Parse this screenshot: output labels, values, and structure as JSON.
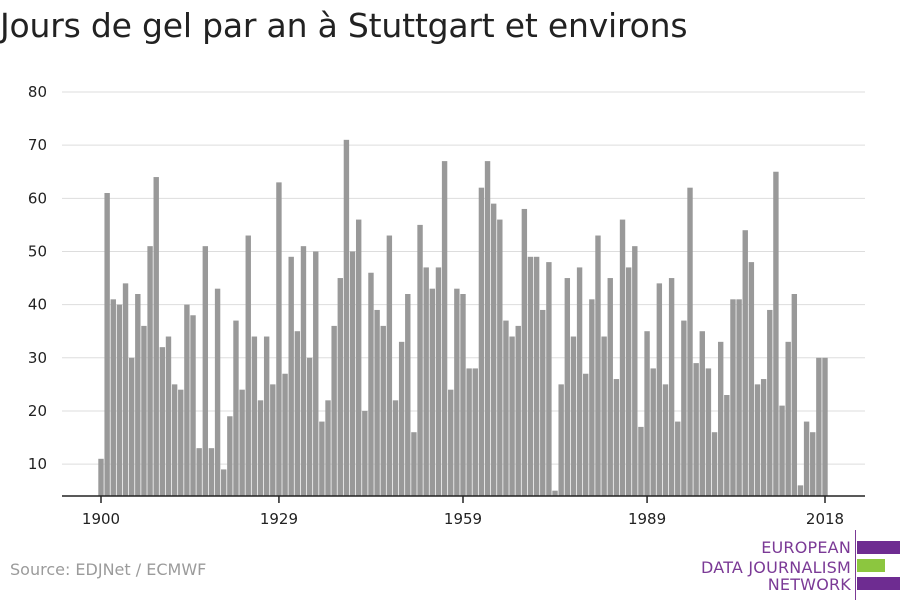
{
  "title": "Jours de gel par an à Stuttgart et environs",
  "source": "Source: EDJNet / ECMWF",
  "logo": {
    "lines": [
      "EUROPEAN",
      "DATA JOURNALISM",
      "NETWORK"
    ],
    "colors": {
      "purple": "#6e2c91",
      "green": "#8cc63f"
    }
  },
  "colors": {
    "bar": "#999999",
    "grid": "#dddddd",
    "axis": "#222222"
  },
  "chart_data": {
    "type": "bar",
    "title": "Jours de gel par an à Stuttgart et environs",
    "x_start": 1900,
    "x_end": 2018,
    "xticks": [
      1900,
      1929,
      1959,
      1989,
      2018
    ],
    "yticks": [
      10,
      20,
      30,
      40,
      50,
      60,
      70,
      80
    ],
    "ylim": [
      4,
      80
    ],
    "grid": true,
    "values": [
      11,
      61,
      41,
      40,
      44,
      30,
      42,
      36,
      51,
      64,
      32,
      34,
      25,
      24,
      40,
      38,
      13,
      51,
      13,
      43,
      9,
      19,
      37,
      24,
      53,
      34,
      22,
      34,
      25,
      63,
      27,
      49,
      35,
      51,
      30,
      50,
      18,
      22,
      36,
      45,
      71,
      50,
      56,
      20,
      46,
      39,
      36,
      53,
      22,
      33,
      42,
      16,
      55,
      47,
      43,
      47,
      67,
      24,
      43,
      42,
      28,
      28,
      62,
      67,
      59,
      56,
      37,
      34,
      36,
      58,
      49,
      49,
      39,
      48,
      5,
      25,
      45,
      34,
      47,
      27,
      41,
      53,
      34,
      45,
      26,
      56,
      47,
      51,
      17,
      35,
      28,
      44,
      25,
      45,
      18,
      37,
      62,
      29,
      35,
      28,
      16,
      33,
      23,
      41,
      41,
      54,
      48,
      25,
      26,
      39,
      65,
      21,
      33,
      42,
      6,
      18,
      16,
      30,
      30
    ]
  }
}
